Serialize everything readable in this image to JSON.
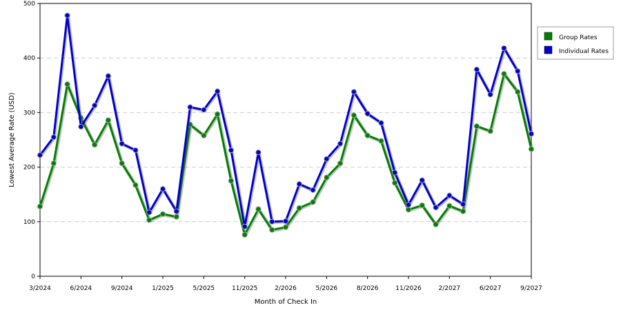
{
  "chart_data": {
    "type": "line",
    "title": "",
    "xlabel": "Month of Check In",
    "ylabel": "Lowest Average Rate (USD)",
    "ylim": [
      0,
      500
    ],
    "yticks": [
      0,
      100,
      200,
      300,
      400,
      500
    ],
    "grid": true,
    "legend_position": "right",
    "x_tick_labels": [
      "3/2024",
      "6/2024",
      "9/2024",
      "1/2025",
      "5/2025",
      "11/2025",
      "2/2026",
      "5/2026",
      "8/2026",
      "11/2026",
      "2/2027",
      "6/2027",
      "9/2027"
    ],
    "series": [
      {
        "name": "Group Rates",
        "color": "#008000",
        "values": [
          128,
          207,
          352,
          290,
          241,
          286,
          207,
          167,
          103,
          114,
          109,
          278,
          258,
          297,
          175,
          76,
          123,
          85,
          90,
          125,
          136,
          181,
          207,
          295,
          258,
          248,
          171,
          122,
          130,
          95,
          129,
          119,
          275,
          266,
          371,
          338,
          233
        ]
      },
      {
        "name": "Individual Rates",
        "color": "#0000cc",
        "values": [
          222,
          255,
          478,
          274,
          313,
          367,
          243,
          231,
          117,
          160,
          119,
          310,
          305,
          339,
          231,
          91,
          227,
          100,
          101,
          169,
          158,
          215,
          243,
          338,
          298,
          281,
          190,
          131,
          176,
          126,
          148,
          132,
          379,
          333,
          418,
          376,
          261
        ]
      }
    ]
  }
}
